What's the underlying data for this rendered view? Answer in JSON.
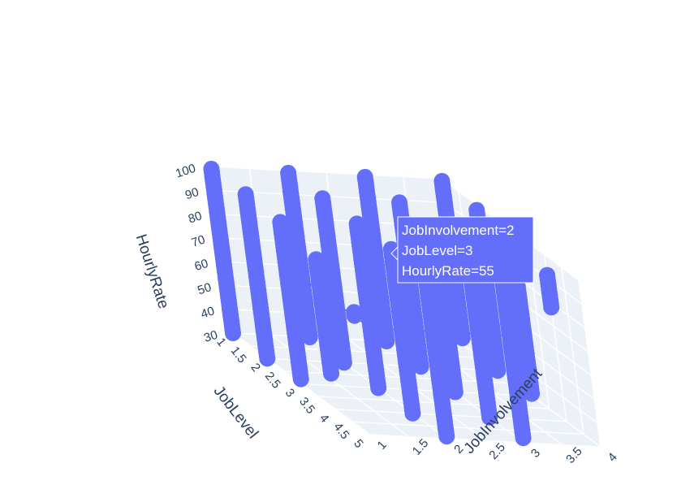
{
  "chart_data": {
    "type": "scatter",
    "subtype": "3d-scatter",
    "marker_color": "#636efa",
    "axes": {
      "x": {
        "title": "JobInvolvement",
        "ticks": [
          "1",
          "1.5",
          "2",
          "2.5",
          "3",
          "3.5",
          "4"
        ],
        "range": [
          1,
          4
        ]
      },
      "y": {
        "title": "JobLevel",
        "ticks": [
          "1",
          "1.5",
          "2",
          "2.5",
          "3",
          "3.5",
          "4",
          "4.5",
          "5"
        ],
        "range": [
          1,
          5
        ]
      },
      "z": {
        "title": "HourlyRate",
        "ticks": [
          "30",
          "40",
          "50",
          "60",
          "70",
          "80",
          "90",
          "100"
        ],
        "range": [
          30,
          100
        ]
      }
    },
    "points": [
      {
        "x": 1,
        "y": 1,
        "zmin": 30,
        "zmax": 100
      },
      {
        "x": 2,
        "y": 1,
        "zmin": 30,
        "zmax": 100
      },
      {
        "x": 3,
        "y": 1,
        "zmin": 30,
        "zmax": 100
      },
      {
        "x": 4,
        "y": 1,
        "zmin": 33,
        "zmax": 100
      },
      {
        "x": 1,
        "y": 2,
        "zmin": 30,
        "zmax": 100
      },
      {
        "x": 2,
        "y": 2,
        "zmin": 30,
        "zmax": 100
      },
      {
        "x": 3,
        "y": 2,
        "zmin": 30,
        "zmax": 100
      },
      {
        "x": 4,
        "y": 2,
        "zmin": 30,
        "zmax": 98
      },
      {
        "x": 1,
        "y": 3,
        "zmin": 32,
        "zmax": 99
      },
      {
        "x": 2,
        "y": 3,
        "zmin": 30,
        "zmax": 100
      },
      {
        "x": 3,
        "y": 3,
        "zmin": 30,
        "zmax": 100
      },
      {
        "x": 4,
        "y": 3,
        "zmin": 31,
        "zmax": 99
      },
      {
        "x": 1,
        "y": 4,
        "zmin": 45,
        "zmax": 94
      },
      {
        "x": 2,
        "y": 4,
        "zmin": 30,
        "zmax": 99
      },
      {
        "x": 3,
        "y": 4,
        "zmin": 30,
        "zmax": 100
      },
      {
        "x": 4,
        "y": 4,
        "zmin": 78,
        "zmax": 92
      },
      {
        "x": 1,
        "y": 5,
        "zmin": 80,
        "zmax": 82
      },
      {
        "x": 2,
        "y": 5,
        "zmin": 31,
        "zmax": 100
      },
      {
        "x": 3,
        "y": 5,
        "zmin": 32,
        "zmax": 100
      }
    ],
    "hover": {
      "lines": [
        "JobInvolvement=2",
        "JobLevel=3",
        "HourlyRate=55"
      ],
      "x": 2,
      "y": 3,
      "z": 55
    }
  }
}
